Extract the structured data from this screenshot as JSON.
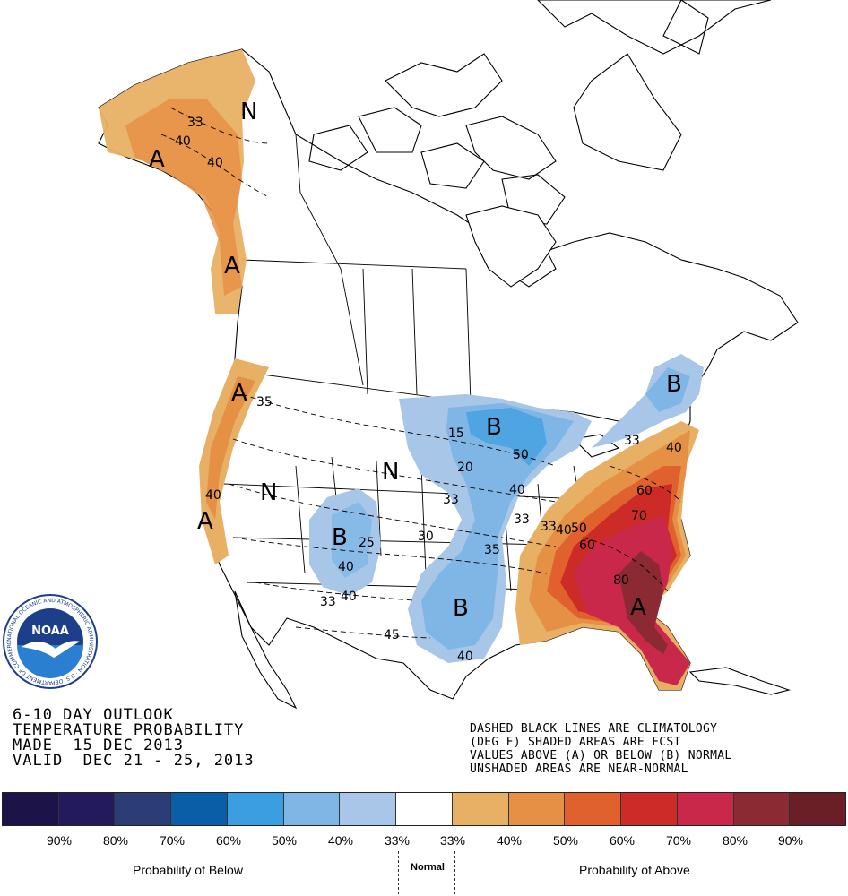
{
  "map_labels": {
    "a_letter": "A",
    "b_letter": "B",
    "n_letter": "N",
    "contours": [
      "33",
      "40",
      "40",
      "35",
      "40",
      "15",
      "20",
      "33",
      "25",
      "40",
      "40",
      "33",
      "30",
      "45",
      "40",
      "35",
      "50",
      "40",
      "33",
      "33",
      "40",
      "50",
      "60",
      "70",
      "80",
      "33",
      "40",
      "60"
    ]
  },
  "title_block": {
    "line1": "6-10 DAY OUTLOOK",
    "line2": "TEMPERATURE PROBABILITY",
    "line3": "MADE  15 DEC 2013",
    "line4": "VALID  DEC 21 - 25, 2013"
  },
  "notes": {
    "line1": "DASHED BLACK LINES ARE CLIMATOLOGY",
    "line2": "(DEG F) SHADED AREAS ARE FCST",
    "line3": "VALUES ABOVE (A) OR BELOW (B) NORMAL",
    "line4": "UNSHADED AREAS ARE NEAR-NORMAL"
  },
  "legend": {
    "colors": [
      "#1c1448",
      "#231a5e",
      "#2b3d74",
      "#0a5ea8",
      "#3a9ee0",
      "#7fb6e6",
      "#a8c6e8",
      "#ffffff",
      "#e8b064",
      "#e69045",
      "#e0602e",
      "#cc2b28",
      "#c9284a",
      "#8c2a34",
      "#6a1e26"
    ],
    "ticks": [
      "90%",
      "80%",
      "70%",
      "60%",
      "50%",
      "40%",
      "33%",
      "33%",
      "40%",
      "50%",
      "60%",
      "70%",
      "80%",
      "90%"
    ],
    "below_label": "Probability of Below",
    "normal_label": "Normal",
    "above_label": "Probability of Above"
  },
  "logo": {
    "text": "NOAA",
    "ring_text": "NATIONAL OCEANIC AND ATMOSPHERIC ADMINISTRATION · U.S. DEPARTMENT OF COMMERCE",
    "colors": {
      "ring": "#ffffff",
      "outer": "#1d3f8a",
      "inner": "#2a7fd0",
      "bird": "#ffffff"
    }
  }
}
